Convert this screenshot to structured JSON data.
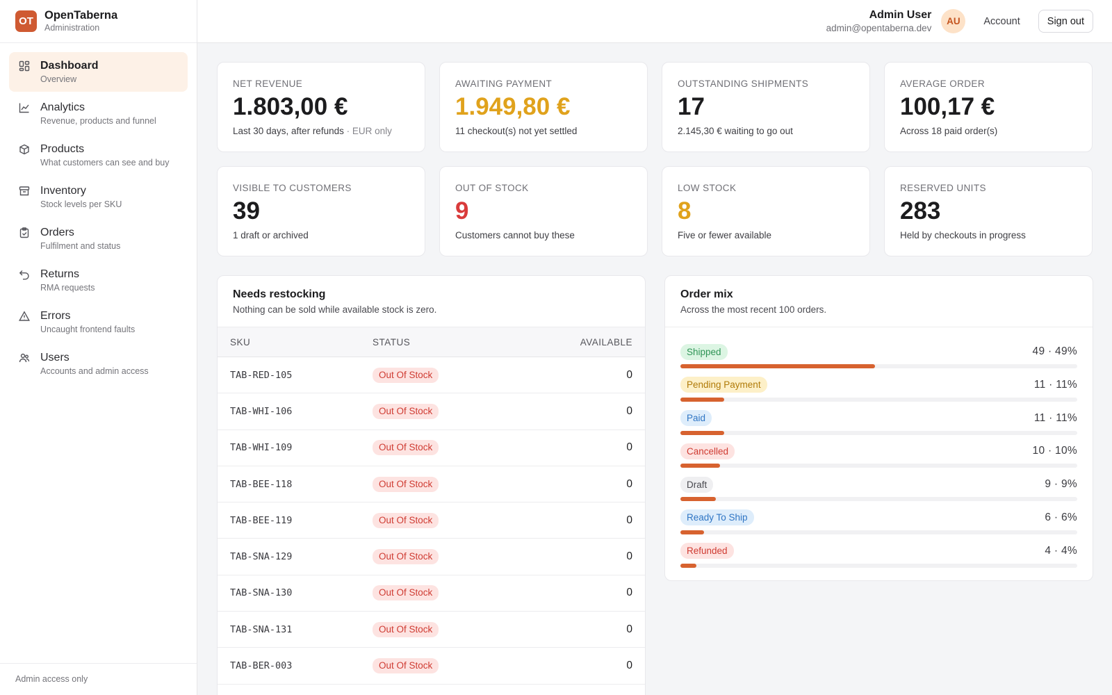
{
  "brand": {
    "logo": "OT",
    "name": "OpenTaberna",
    "subtitle": "Administration"
  },
  "nav": [
    {
      "label": "Dashboard",
      "desc": "Overview",
      "icon": "dashboard-icon",
      "active": true
    },
    {
      "label": "Analytics",
      "desc": "Revenue, products and funnel",
      "icon": "chart-line-icon",
      "active": false
    },
    {
      "label": "Products",
      "desc": "What customers can see and buy",
      "icon": "box-icon",
      "active": false
    },
    {
      "label": "Inventory",
      "desc": "Stock levels per SKU",
      "icon": "archive-icon",
      "active": false
    },
    {
      "label": "Orders",
      "desc": "Fulfilment and status",
      "icon": "clipboard-icon",
      "active": false
    },
    {
      "label": "Returns",
      "desc": "RMA requests",
      "icon": "undo-icon",
      "active": false
    },
    {
      "label": "Errors",
      "desc": "Uncaught frontend faults",
      "icon": "warning-icon",
      "active": false
    },
    {
      "label": "Users",
      "desc": "Accounts and admin access",
      "icon": "users-icon",
      "active": false
    }
  ],
  "sidebar_footer": "Admin access only",
  "topbar": {
    "user_name": "Admin User",
    "user_email": "admin@opentaberna.dev",
    "avatar_initials": "AU",
    "account_label": "Account",
    "signout_label": "Sign out"
  },
  "stats": [
    {
      "label": "Net revenue",
      "value": "1.803,00 €",
      "sub": "Last 30 days, after refunds",
      "sub_muted": " · EUR only",
      "tone": "default"
    },
    {
      "label": "Awaiting payment",
      "value": "1.949,80 €",
      "sub": "11 checkout(s) not yet settled",
      "sub_muted": "",
      "tone": "amber"
    },
    {
      "label": "Outstanding shipments",
      "value": "17",
      "sub": "2.145,30 € waiting to go out",
      "sub_muted": "",
      "tone": "default"
    },
    {
      "label": "Average order",
      "value": "100,17 €",
      "sub": "Across 18 paid order(s)",
      "sub_muted": "",
      "tone": "default"
    },
    {
      "label": "Visible to customers",
      "value": "39",
      "sub": "1 draft or archived",
      "sub_muted": "",
      "tone": "default"
    },
    {
      "label": "Out of stock",
      "value": "9",
      "sub": "Customers cannot buy these",
      "sub_muted": "",
      "tone": "red"
    },
    {
      "label": "Low stock",
      "value": "8",
      "sub": "Five or fewer available",
      "sub_muted": "",
      "tone": "amber"
    },
    {
      "label": "Reserved units",
      "value": "283",
      "sub": "Held by checkouts in progress",
      "sub_muted": "",
      "tone": "default"
    }
  ],
  "restock": {
    "title": "Needs restocking",
    "desc": "Nothing can be sold while available stock is zero.",
    "columns": {
      "sku": "SKU",
      "status": "STATUS",
      "available": "AVAILABLE"
    },
    "rows": [
      {
        "sku": "TAB-RED-105",
        "status": "Out Of Stock",
        "available": "0"
      },
      {
        "sku": "TAB-WHI-106",
        "status": "Out Of Stock",
        "available": "0"
      },
      {
        "sku": "TAB-WHI-109",
        "status": "Out Of Stock",
        "available": "0"
      },
      {
        "sku": "TAB-BEE-118",
        "status": "Out Of Stock",
        "available": "0"
      },
      {
        "sku": "TAB-BEE-119",
        "status": "Out Of Stock",
        "available": "0"
      },
      {
        "sku": "TAB-SNA-129",
        "status": "Out Of Stock",
        "available": "0"
      },
      {
        "sku": "TAB-SNA-130",
        "status": "Out Of Stock",
        "available": "0"
      },
      {
        "sku": "TAB-SNA-131",
        "status": "Out Of Stock",
        "available": "0"
      },
      {
        "sku": "TAB-BER-003",
        "status": "Out Of Stock",
        "available": "0"
      }
    ]
  },
  "order_mix": {
    "title": "Order mix",
    "desc": "Across the most recent 100 orders.",
    "items": [
      {
        "label": "Shipped",
        "count": "49 · 49%",
        "fraction": 0.49,
        "bg": "#dcf5e3",
        "fg": "#2f9456"
      },
      {
        "label": "Pending Payment",
        "count": "11 · 11%",
        "fraction": 0.11,
        "bg": "#fdf0c8",
        "fg": "#b07a08"
      },
      {
        "label": "Paid",
        "count": "11 · 11%",
        "fraction": 0.11,
        "bg": "#deedfb",
        "fg": "#2f75c4"
      },
      {
        "label": "Cancelled",
        "count": "10 · 10%",
        "fraction": 0.1,
        "bg": "#fde3e1",
        "fg": "#cf3b32"
      },
      {
        "label": "Draft",
        "count": "9 · 9%",
        "fraction": 0.09,
        "bg": "#efeff1",
        "fg": "#4a4a50"
      },
      {
        "label": "Ready To Ship",
        "count": "6 · 6%",
        "fraction": 0.06,
        "bg": "#deedfb",
        "fg": "#2f75c4"
      },
      {
        "label": "Refunded",
        "count": "4 · 4%",
        "fraction": 0.04,
        "bg": "#fde3e1",
        "fg": "#cf3b32"
      }
    ]
  }
}
